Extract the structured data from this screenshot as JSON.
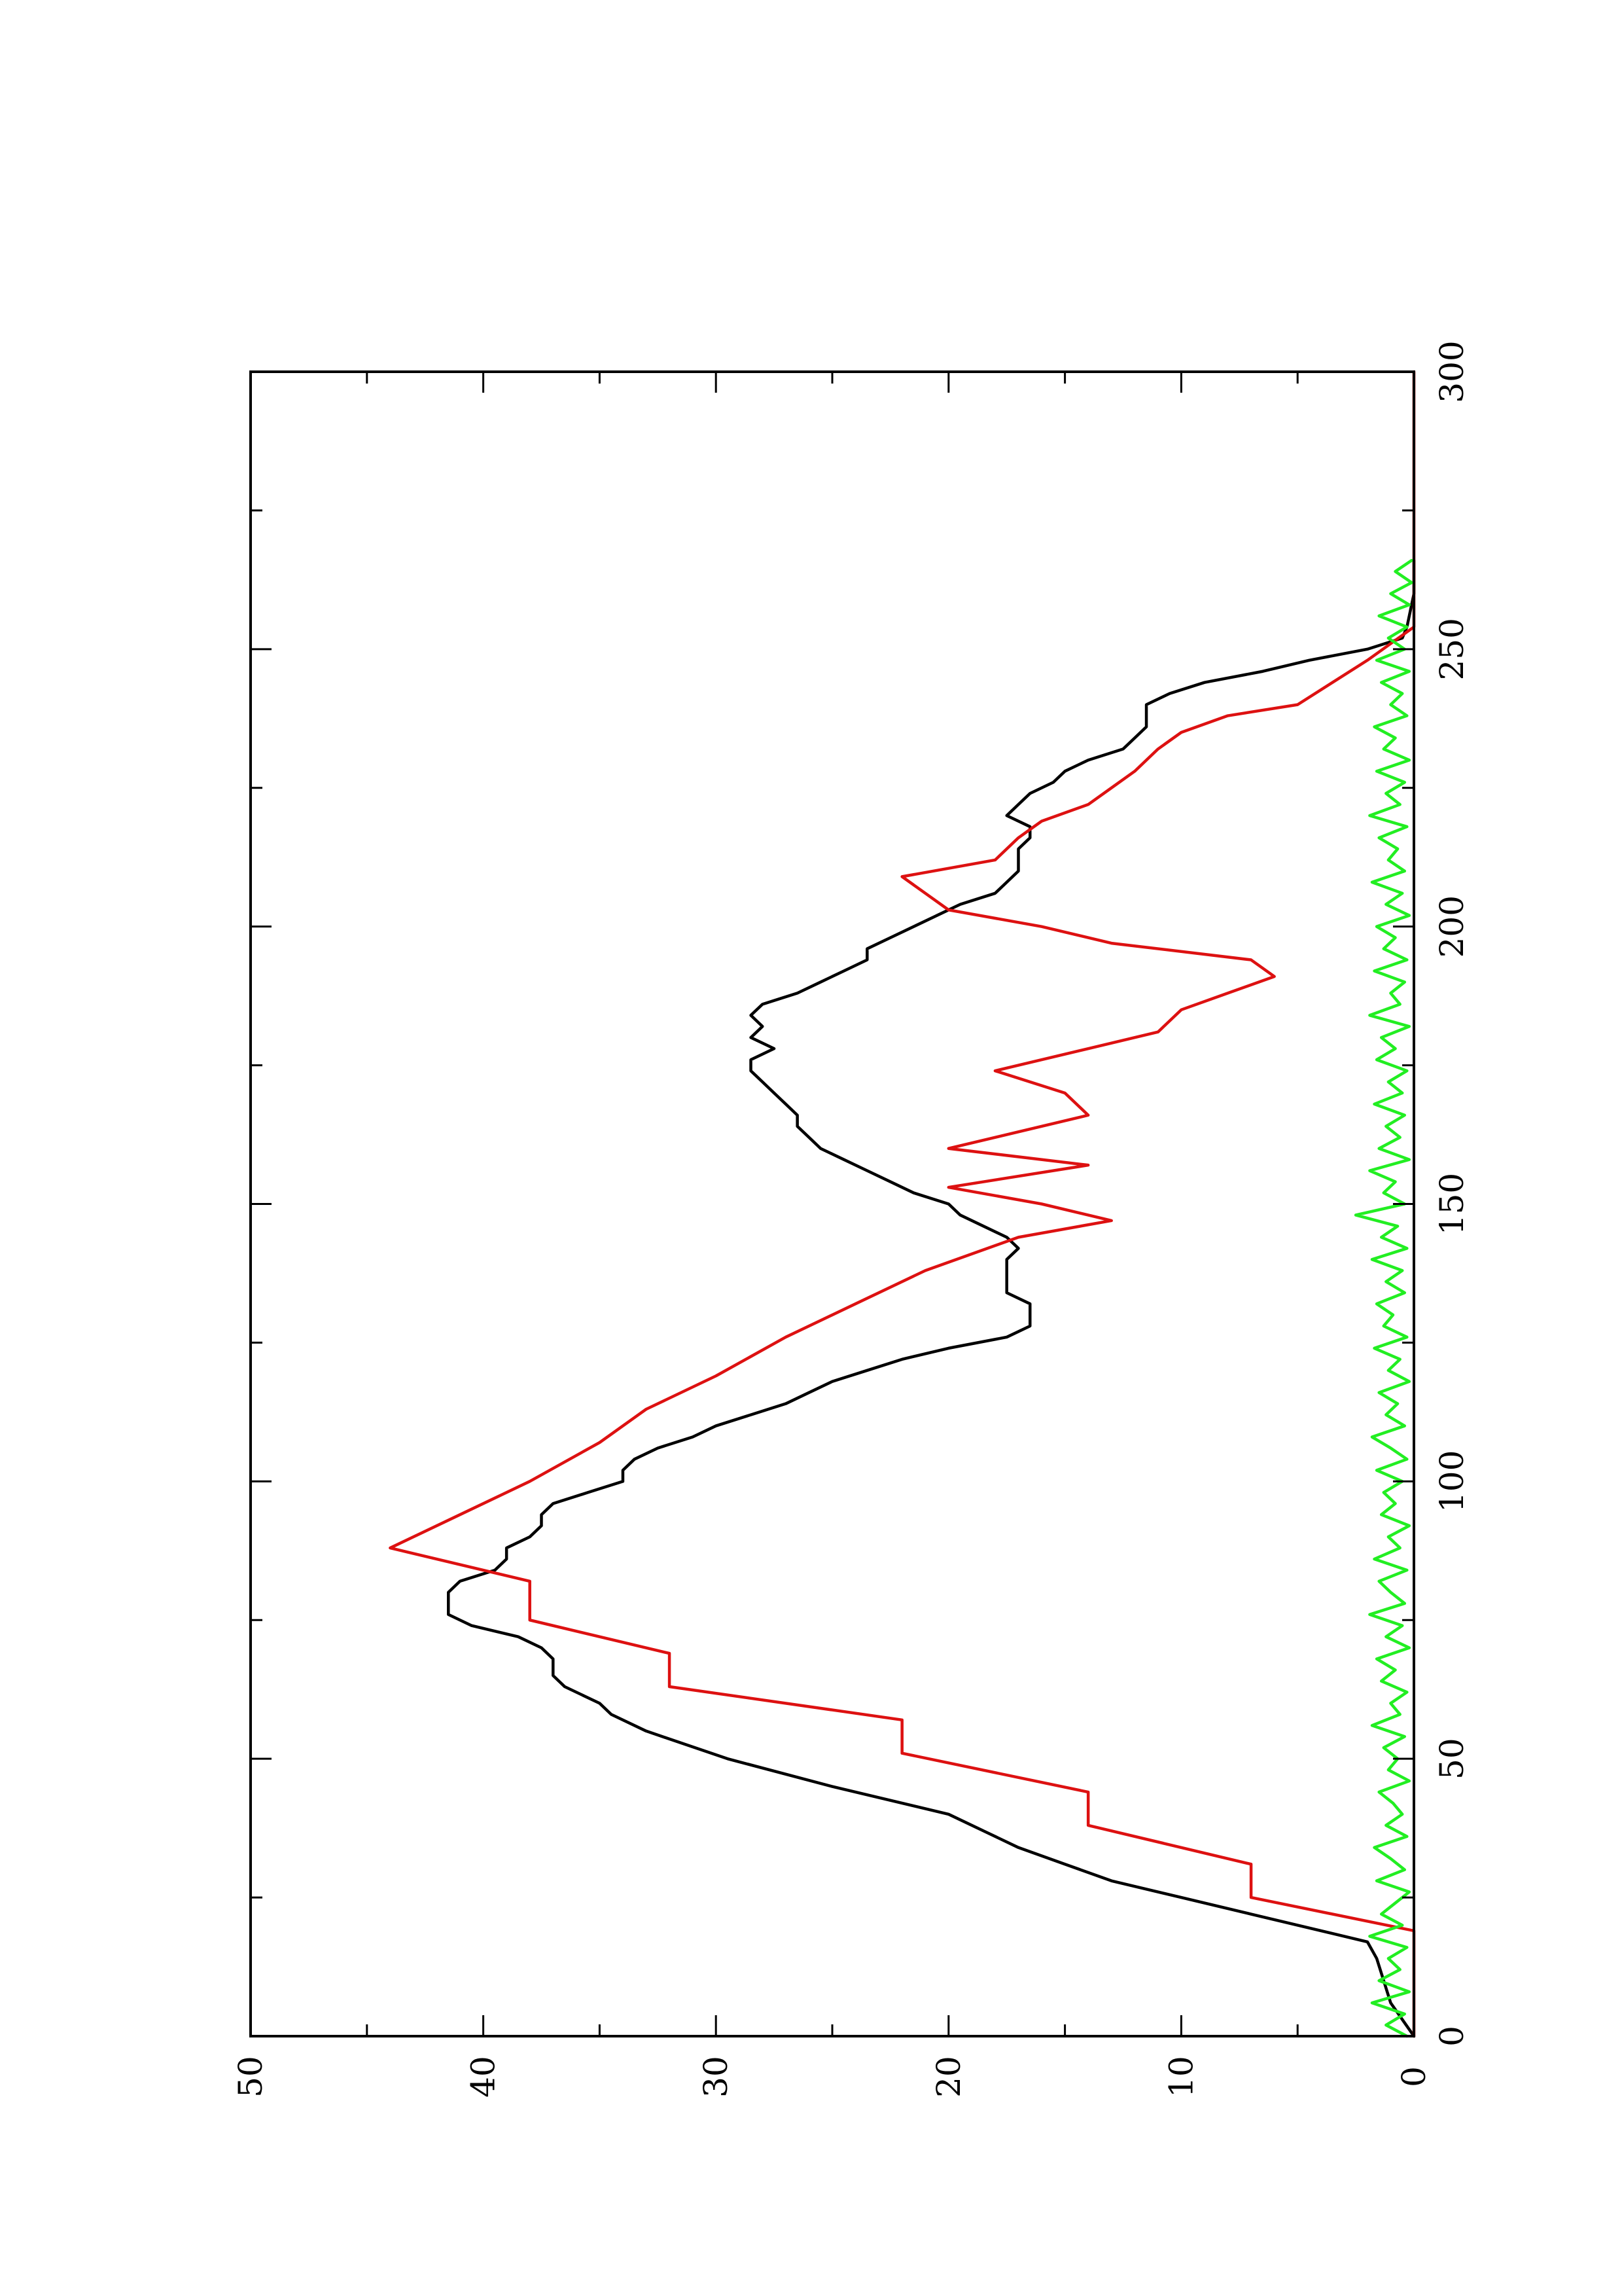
{
  "chart_data": {
    "type": "line",
    "orientation": "rotated-90-ccw",
    "title": "",
    "xlabel": "",
    "ylabel": "",
    "xlim": [
      0,
      300
    ],
    "ylim": [
      0,
      50
    ],
    "x_ticks": [
      "0",
      "50",
      "100",
      "150",
      "200",
      "250",
      "300"
    ],
    "y_ticks": [
      "0",
      "10",
      "20",
      "30",
      "40",
      "50"
    ],
    "x_minor_step": 25,
    "y_minor_step": 5,
    "grid": false,
    "legend": "none",
    "series": [
      {
        "color": "#000000",
        "x": [
          0,
          3,
          6,
          10,
          14,
          17,
          19,
          22,
          25,
          28,
          31,
          34,
          37,
          40,
          45,
          50,
          55,
          58,
          60,
          63,
          65,
          68,
          70,
          72,
          74,
          76,
          78,
          80,
          82,
          84,
          86,
          88,
          90,
          92,
          94,
          96,
          98,
          100,
          102,
          104,
          106,
          108,
          110,
          112,
          114,
          116,
          118,
          120,
          122,
          124,
          126,
          128,
          130,
          132,
          134,
          136,
          138,
          140,
          142,
          144,
          146,
          148,
          150,
          152,
          154,
          156,
          158,
          160,
          162,
          164,
          166,
          168,
          170,
          172,
          174,
          176,
          178,
          180,
          182,
          184,
          186,
          188,
          190,
          192,
          194,
          196,
          198,
          200,
          202,
          204,
          206,
          208,
          210,
          212,
          214,
          216,
          218,
          220,
          222,
          224,
          226,
          228,
          230,
          232,
          234,
          236,
          238,
          240,
          242,
          244,
          246,
          248,
          250,
          252,
          254,
          256,
          258,
          260,
          262,
          264,
          266
        ],
        "values": [
          0,
          0.5,
          1,
          1.3,
          1.6,
          2,
          4,
          7,
          10,
          13,
          15,
          17,
          18.5,
          20,
          25,
          29.5,
          33,
          34.5,
          35,
          36.5,
          37,
          37,
          37.5,
          38.5,
          40.5,
          41.5,
          41.5,
          41.5,
          41,
          39.5,
          39,
          39,
          38,
          37.5,
          37.5,
          37,
          35.5,
          34,
          34,
          33.5,
          32.5,
          31,
          30,
          28.5,
          27,
          26,
          25,
          23.5,
          22,
          20,
          17.5,
          16.5,
          16.5,
          16.5,
          17.5,
          17.5,
          17.5,
          17.5,
          17,
          17.5,
          18.5,
          19.5,
          20,
          21.5,
          22.5,
          23.5,
          24.5,
          25.5,
          26,
          26.5,
          26.5,
          27,
          27.5,
          28,
          28.5,
          28.5,
          27.5,
          28.5,
          28,
          28.5,
          28,
          26.5,
          25.5,
          24.5,
          23.5,
          23.5,
          22.5,
          21.5,
          20.5,
          19.5,
          18,
          17.5,
          17,
          17,
          17,
          16.5,
          16.5,
          17.5,
          17,
          16.5,
          15.5,
          15,
          14,
          12.5,
          12,
          11.5,
          11.5,
          11.5,
          10.5,
          9,
          6.5,
          4.5,
          2,
          0.5,
          0.3,
          0.2,
          0.1,
          0,
          0,
          0,
          0
        ]
      },
      {
        "color": "#dd1111",
        "x": [
          0,
          19,
          25,
          31,
          38,
          44,
          51,
          57,
          63,
          69,
          75,
          82,
          88,
          94,
          100,
          107,
          113,
          119,
          126,
          132,
          138,
          144,
          147,
          150,
          153,
          157,
          160,
          163,
          166,
          170,
          174,
          178,
          181,
          185,
          188,
          191,
          194,
          197,
          200,
          203,
          206,
          209,
          212,
          216,
          219,
          222,
          225,
          228,
          232,
          235,
          238,
          240,
          248,
          254,
          300
        ],
        "values": [
          0,
          0,
          7,
          7,
          14,
          14,
          22,
          22,
          32,
          32,
          38,
          38,
          44,
          41,
          38,
          35,
          33,
          30,
          27,
          24,
          21,
          17,
          13,
          16,
          20,
          14,
          20,
          17,
          14,
          15,
          18,
          14,
          11,
          10,
          8,
          6,
          7,
          13,
          16,
          20,
          21,
          22,
          18,
          17,
          16,
          14,
          13,
          12,
          11,
          10,
          8,
          5,
          2,
          0,
          0
        ]
      },
      {
        "color": "#22ee22",
        "x": [
          0,
          2,
          4,
          6,
          8,
          10,
          12,
          14,
          16,
          18,
          20,
          22,
          24,
          26,
          28,
          30,
          32,
          34,
          36,
          38,
          40,
          42,
          44,
          46,
          48,
          50,
          52,
          54,
          56,
          58,
          60,
          62,
          64,
          66,
          68,
          70,
          72,
          74,
          76,
          78,
          80,
          82,
          84,
          86,
          88,
          90,
          92,
          94,
          96,
          98,
          100,
          102,
          104,
          106,
          108,
          110,
          112,
          114,
          116,
          118,
          120,
          122,
          124,
          126,
          128,
          130,
          132,
          134,
          136,
          138,
          140,
          142,
          144,
          146,
          148,
          150,
          152,
          154,
          156,
          158,
          160,
          162,
          164,
          166,
          168,
          170,
          172,
          174,
          176,
          178,
          180,
          182,
          184,
          186,
          188,
          190,
          192,
          194,
          196,
          198,
          200,
          202,
          204,
          206,
          208,
          210,
          212,
          214,
          216,
          218,
          220,
          222,
          224,
          226,
          228,
          230,
          232,
          234,
          236,
          238,
          240,
          242,
          244,
          246,
          248,
          250,
          252,
          254,
          256,
          258,
          260,
          262,
          264,
          266
        ],
        "values": [
          0.3,
          1.2,
          0.4,
          1.8,
          0.2,
          1.5,
          0.6,
          1.1,
          0.3,
          1.9,
          0.5,
          1.4,
          0.8,
          0.2,
          1.6,
          0.4,
          1.0,
          1.7,
          0.3,
          1.2,
          0.5,
          0.9,
          1.5,
          0.2,
          1.1,
          0.7,
          1.3,
          0.4,
          1.8,
          0.6,
          1.0,
          0.3,
          1.4,
          0.8,
          1.6,
          0.2,
          1.2,
          0.5,
          1.9,
          0.4,
          1.0,
          1.5,
          0.3,
          1.7,
          0.6,
          1.1,
          0.2,
          1.4,
          0.8,
          1.3,
          0.5,
          1.6,
          0.3,
          1.0,
          1.8,
          0.4,
          1.2,
          0.7,
          1.5,
          0.2,
          1.1,
          0.6,
          1.7,
          0.3,
          1.3,
          0.9,
          1.6,
          0.4,
          1.2,
          0.5,
          1.8,
          0.3,
          1.4,
          0.7,
          2.5,
          0.4,
          1.3,
          0.8,
          1.9,
          0.2,
          1.5,
          0.6,
          1.2,
          0.4,
          1.7,
          0.5,
          1.1,
          0.3,
          1.6,
          0.8,
          1.4,
          0.2,
          1.9,
          0.6,
          1.0,
          0.4,
          1.7,
          0.3,
          1.3,
          0.8,
          1.6,
          0.2,
          1.2,
          0.5,
          1.8,
          0.4,
          1.1,
          0.7,
          1.5,
          0.3,
          1.9,
          0.6,
          1.2,
          0.4,
          1.6,
          0.2,
          1.3,
          0.8,
          1.7,
          0.3,
          1.0,
          0.5,
          1.4,
          0.2,
          1.6,
          0.4,
          1.1,
          0.3,
          1.5,
          0.2,
          1.0,
          0.1,
          0.8,
          0.1
        ]
      }
    ]
  }
}
